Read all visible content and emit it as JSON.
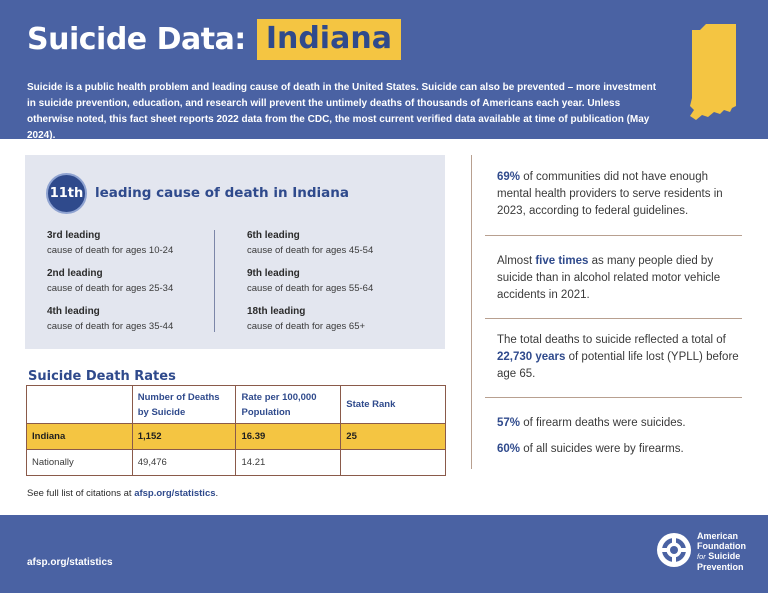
{
  "header": {
    "title": "Suicide Data:",
    "state": "Indiana",
    "intro": "Suicide is a public health problem and leading cause of death in the United States. Suicide can also be prevented – more investment in suicide prevention, education, and research will prevent the untimely deaths of thousands of Americans each year. Unless otherwise noted, this fact sheet reports 2022 data from the CDC, the most current verified data available at time of publication (May 2024)."
  },
  "leading": {
    "rank": "11th",
    "heading": "leading cause of death in Indiana",
    "left": [
      {
        "rank": "3rd leading",
        "desc": "cause of death for ages 10-24"
      },
      {
        "rank": "2nd leading",
        "desc": "cause of death for ages 25-34"
      },
      {
        "rank": "4th leading",
        "desc": "cause of death for ages 35-44"
      }
    ],
    "right": [
      {
        "rank": "6th leading",
        "desc": "cause of death for ages 45-54"
      },
      {
        "rank": "9th leading",
        "desc": "cause of death for ages 55-64"
      },
      {
        "rank": "18th leading",
        "desc": "cause of death for ages 65+"
      }
    ]
  },
  "rates": {
    "title": "Suicide Death Rates",
    "headers": [
      "",
      "Number of Deaths by Suicide",
      "Rate per 100,000 Population",
      "State Rank"
    ],
    "rows": [
      [
        "Indiana",
        "1,152",
        "16.39",
        "25"
      ],
      [
        "Nationally",
        "49,476",
        "14.21",
        ""
      ]
    ]
  },
  "citation": {
    "prefix": "See full list of citations at ",
    "link": "afsp.org/statistics",
    "suffix": "."
  },
  "facts": {
    "f1": {
      "hl": "69%",
      "text": " of communities did not have enough mental health providers to serve residents in 2023, according to federal guidelines."
    },
    "f2": {
      "pre": "Almost ",
      "hl": "five times",
      "text": " as many people died by suicide than in alcohol related motor vehicle accidents in 2021."
    },
    "f3": {
      "pre": "The total deaths to suicide reflected a total of ",
      "hl": "22,730 years",
      "text": " of potential life lost (YPLL) before age 65."
    },
    "f4": {
      "hl": "57%",
      "text": " of firearm deaths were suicides."
    },
    "f5": {
      "hl": "60%",
      "text": " of all suicides were by firearms."
    }
  },
  "footer": {
    "url": "afsp.org/statistics",
    "logo_line1": "American",
    "logo_line2": "Foundation",
    "logo_for": "for",
    "logo_line3": "Suicide",
    "logo_line4": "Prevention"
  },
  "colors": {
    "brand_blue": "#4a62a3",
    "accent_yellow": "#f4c542",
    "heading_blue": "#2f4a8c"
  }
}
